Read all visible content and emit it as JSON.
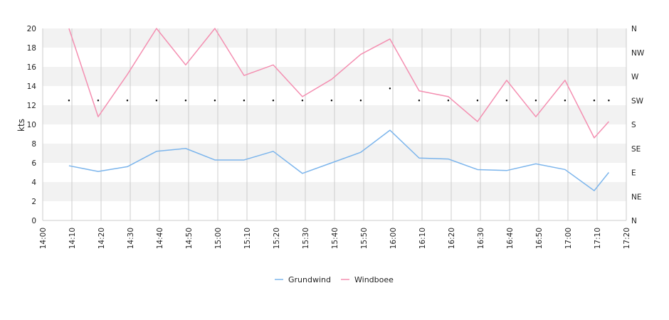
{
  "chart_data": {
    "type": "line",
    "xlabel": "",
    "ylabel": "kts",
    "ylim": [
      0,
      20
    ],
    "xlim": [
      "14:00",
      "17:20"
    ],
    "y_ticks": [
      "0",
      "2",
      "4",
      "6",
      "8",
      "10",
      "12",
      "14",
      "16",
      "18",
      "20"
    ],
    "x_ticks": [
      "14:00",
      "14:10",
      "14:20",
      "14:30",
      "14:40",
      "14:50",
      "15:00",
      "15:10",
      "15:20",
      "15:30",
      "15:40",
      "15:50",
      "16:00",
      "16:10",
      "16:20",
      "16:30",
      "16:40",
      "16:50",
      "17:00",
      "17:10",
      "17:20"
    ],
    "right_axis": {
      "label": "",
      "ticks": [
        "N",
        "NE",
        "E",
        "SE",
        "S",
        "SW",
        "W",
        "NW",
        "N"
      ]
    },
    "x": [
      "14:09",
      "14:19",
      "14:29",
      "14:39",
      "14:49",
      "14:59",
      "15:09",
      "15:19",
      "15:29",
      "15:39",
      "15:49",
      "15:59",
      "16:09",
      "16:19",
      "16:29",
      "16:39",
      "16:49",
      "16:59",
      "17:09",
      "17:14"
    ],
    "series": [
      {
        "name": "Grundwind",
        "color": "#7cb5ec",
        "values": [
          5.7,
          5.1,
          5.6,
          7.2,
          7.5,
          6.3,
          6.3,
          7.2,
          4.9,
          6.0,
          7.1,
          9.4,
          6.5,
          6.4,
          5.3,
          5.2,
          5.9,
          5.3,
          3.1,
          5.0
        ]
      },
      {
        "name": "Windboee",
        "color": "#f48fb1",
        "values": [
          20.0,
          10.8,
          15.2,
          20.0,
          16.2,
          20.0,
          15.1,
          16.2,
          12.9,
          14.7,
          17.3,
          18.9,
          13.5,
          12.9,
          10.3,
          14.6,
          10.8,
          14.6,
          8.6,
          10.3
        ]
      }
    ],
    "direction_series": {
      "values_deg": [
        225,
        225,
        225,
        225,
        225,
        225,
        225,
        225,
        225,
        225,
        225,
        247.5,
        225,
        225,
        225,
        225,
        225,
        225,
        225,
        225
      ],
      "color": "#000000"
    },
    "bands": [
      "#f2f2f2",
      "#ffffff"
    ],
    "grid": true,
    "legend": "bottom-center"
  }
}
